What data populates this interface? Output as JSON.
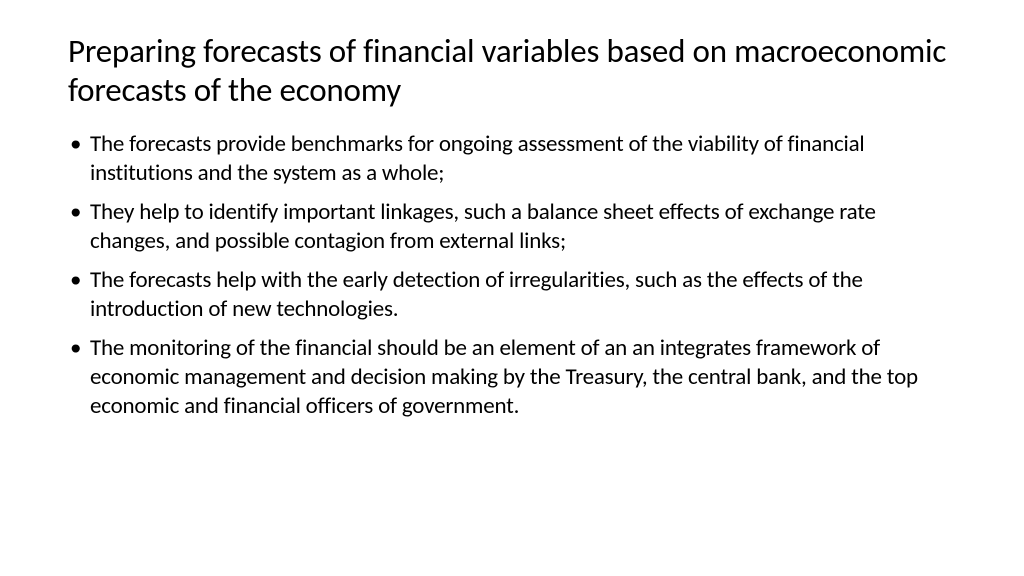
{
  "slide": {
    "title": "Preparing forecasts of financial variables based on macroeconomic forecasts of the economy",
    "bullets": [
      "The forecasts provide benchmarks for ongoing assessment of the viability of financial institutions and the system as a whole;",
      "They help to identify important linkages, such a balance sheet effects of exchange rate changes, and possible contagion from external links;",
      "The forecasts help with the early detection of irregularities, such as the effects of the introduction of new technologies.",
      "The monitoring of the financial should be an element of an an integrates framework of economic management and decision making by the Treasury, the central bank, and the top economic and financial officers of government."
    ],
    "colors": {
      "background": "#ffffff",
      "text": "#000000"
    },
    "typography": {
      "title_fontsize": 33,
      "title_weight": "normal",
      "body_fontsize": 23,
      "font_family": "Calibri"
    }
  }
}
